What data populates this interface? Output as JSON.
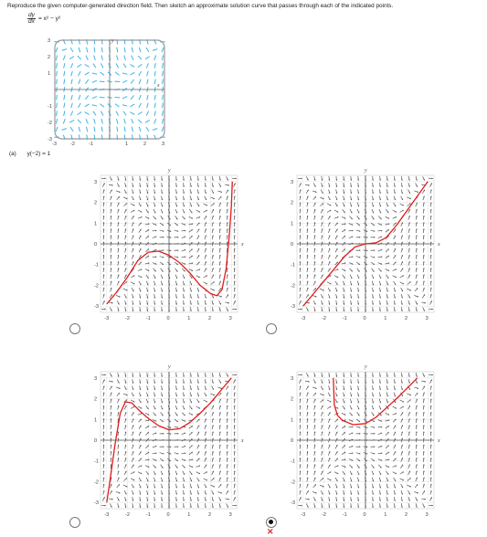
{
  "instruction": "Reproduce the given computer-generated direction field. Then sketch an approximate solution curve that passes through each of the indicated points.",
  "equation": {
    "numerator": "dy",
    "denominator": "dx",
    "rhs": "= x² − y²"
  },
  "part": {
    "label": "(a)",
    "condition": "y(−2) = 1"
  },
  "axes": {
    "x_label": "x",
    "y_label": "y"
  },
  "ticks": {
    "x": [
      "-3",
      "-2",
      "-1",
      "0",
      "1",
      "2",
      "3"
    ],
    "y": [
      "3",
      "2",
      "1",
      "0",
      "-1",
      "-2",
      "-3"
    ]
  },
  "ref_ticks": {
    "x": [
      "-3",
      "-2",
      "-1",
      "1",
      "2",
      "3"
    ],
    "y": [
      "3",
      "2",
      "1",
      "-1",
      "-2",
      "-3"
    ]
  },
  "colors": {
    "field": "#3cb4e6",
    "arrows": "#555555",
    "curve": "#e21b1b",
    "wrong_mark": "#d93030"
  },
  "options": [
    {
      "id": "A",
      "selected": false,
      "curve": [
        [
          -3,
          -2.9
        ],
        [
          -2.5,
          -2.3
        ],
        [
          -2,
          -1.6
        ],
        [
          -1.5,
          -0.8
        ],
        [
          -1,
          -0.4
        ],
        [
          -0.5,
          -0.35
        ],
        [
          0,
          -0.55
        ],
        [
          0.5,
          -0.9
        ],
        [
          1,
          -1.4
        ],
        [
          1.5,
          -2.0
        ],
        [
          2,
          -2.4
        ],
        [
          2.3,
          -2.5
        ],
        [
          2.55,
          -2.2
        ],
        [
          2.75,
          -1.2
        ],
        [
          2.9,
          0.4
        ],
        [
          3.0,
          1.8
        ],
        [
          3.05,
          3.0
        ]
      ]
    },
    {
      "id": "B",
      "selected": false,
      "curve": [
        [
          -3,
          -3.0
        ],
        [
          -2.5,
          -2.4
        ],
        [
          -2,
          -1.8
        ],
        [
          -1.5,
          -1.2
        ],
        [
          -1,
          -0.6
        ],
        [
          -0.5,
          -0.15
        ],
        [
          0,
          0.0
        ],
        [
          0.5,
          0.05
        ],
        [
          1,
          0.3
        ],
        [
          1.5,
          0.9
        ],
        [
          2,
          1.6
        ],
        [
          2.5,
          2.3
        ],
        [
          3,
          3.0
        ]
      ]
    },
    {
      "id": "C",
      "selected": false,
      "curve": [
        [
          -3,
          -3.0
        ],
        [
          -2.85,
          -2.0
        ],
        [
          -2.6,
          -0.2
        ],
        [
          -2.35,
          1.3
        ],
        [
          -2.1,
          1.85
        ],
        [
          -1.8,
          1.8
        ],
        [
          -1.4,
          1.4
        ],
        [
          -1,
          1.05
        ],
        [
          -0.5,
          0.7
        ],
        [
          0,
          0.5
        ],
        [
          0.5,
          0.55
        ],
        [
          1,
          0.85
        ],
        [
          1.5,
          1.3
        ],
        [
          2,
          1.8
        ],
        [
          2.5,
          2.4
        ],
        [
          3,
          3.0
        ]
      ]
    },
    {
      "id": "D",
      "selected": true,
      "curve": [
        [
          -1.55,
          3.0
        ],
        [
          -1.5,
          1.7
        ],
        [
          -1.35,
          1.2
        ],
        [
          -1.1,
          0.95
        ],
        [
          -0.6,
          0.75
        ],
        [
          0,
          0.8
        ],
        [
          0.5,
          1.1
        ],
        [
          1,
          1.55
        ],
        [
          1.5,
          2.0
        ],
        [
          2,
          2.5
        ],
        [
          2.5,
          3.0
        ]
      ]
    }
  ],
  "result_mark": "✕"
}
